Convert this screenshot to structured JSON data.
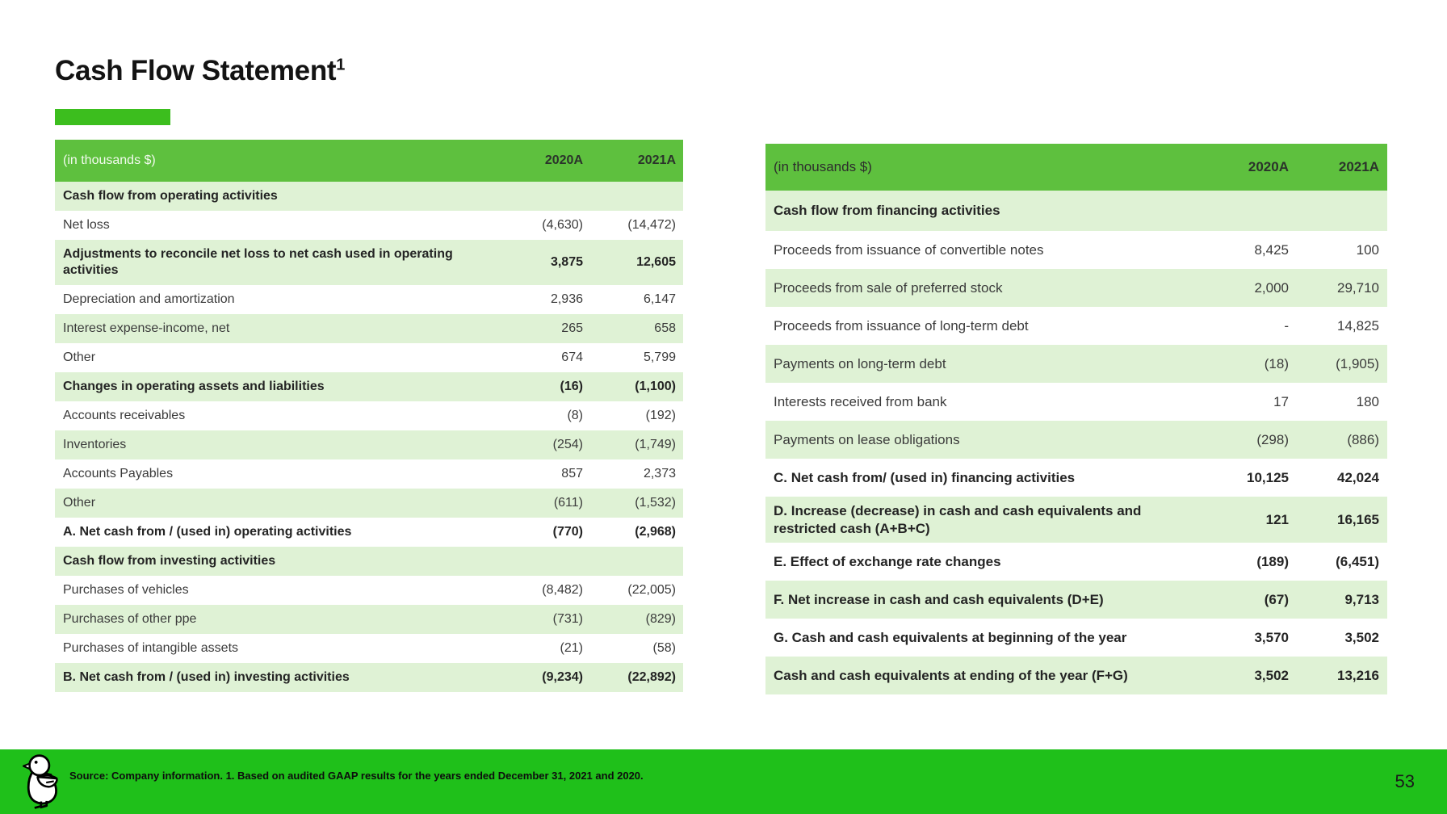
{
  "slide": {
    "title": "Cash Flow Statement",
    "title_superscript": "1",
    "footer_source": "Source: Company information. 1. Based on audited GAAP results for the years ended December 31, 2021 and 2020.",
    "page_number": "53"
  },
  "colors": {
    "header_green": "#5ec03e",
    "row_light_green": "#dff2d5",
    "title_bar_green": "#3cbe1e",
    "footer_green": "#1fc01a"
  },
  "left_table": {
    "unit_label": "(in thousands $)",
    "columns": [
      "2020A",
      "2021A"
    ],
    "rows": [
      {
        "label": "Cash flow from operating activities",
        "v2020": "",
        "v2021": "",
        "bold": true,
        "section": true
      },
      {
        "label": "Net loss",
        "v2020": "(4,630)",
        "v2021": "(14,472)"
      },
      {
        "label": "Adjustments to reconcile net loss to net cash used in operating activities",
        "v2020": "3,875",
        "v2021": "12,605",
        "bold": true,
        "tall": true
      },
      {
        "label": "Depreciation and amortization",
        "v2020": "2,936",
        "v2021": "6,147"
      },
      {
        "label": "Interest expense-income, net",
        "v2020": "265",
        "v2021": "658"
      },
      {
        "label": "Other",
        "v2020": "674",
        "v2021": "5,799"
      },
      {
        "label": "Changes in operating assets and liabilities",
        "v2020": "(16)",
        "v2021": "(1,100)",
        "bold": true
      },
      {
        "label": "Accounts receivables",
        "v2020": "(8)",
        "v2021": "(192)"
      },
      {
        "label": "Inventories",
        "v2020": "(254)",
        "v2021": "(1,749)"
      },
      {
        "label": "Accounts Payables",
        "v2020": "857",
        "v2021": "2,373"
      },
      {
        "label": "Other",
        "v2020": "(611)",
        "v2021": "(1,532)"
      },
      {
        "label": "A. Net cash from / (used in) operating activities",
        "v2020": "(770)",
        "v2021": "(2,968)",
        "bold": true
      },
      {
        "label": "Cash flow from investing activities",
        "v2020": "",
        "v2021": "",
        "bold": true,
        "section": true
      },
      {
        "label": "Purchases of vehicles",
        "v2020": "(8,482)",
        "v2021": "(22,005)"
      },
      {
        "label": "Purchases of other ppe",
        "v2020": "(731)",
        "v2021": "(829)"
      },
      {
        "label": "Purchases of intangible assets",
        "v2020": "(21)",
        "v2021": "(58)"
      },
      {
        "label": "B. Net cash from / (used in) investing activities",
        "v2020": "(9,234)",
        "v2021": "(22,892)",
        "bold": true
      }
    ]
  },
  "right_table": {
    "unit_label": "(in thousands $)",
    "columns": [
      "2020A",
      "2021A"
    ],
    "rows": [
      {
        "label": "Cash flow from financing activities",
        "v2020": "",
        "v2021": "",
        "bold": true,
        "section": true
      },
      {
        "label": "Proceeds from issuance of convertible notes",
        "v2020": "8,425",
        "v2021": "100"
      },
      {
        "label": "Proceeds from sale of preferred stock",
        "v2020": "2,000",
        "v2021": "29,710"
      },
      {
        "label": "Proceeds from issuance of long-term debt",
        "v2020": "-",
        "v2021": "14,825"
      },
      {
        "label": "Payments on long-term debt",
        "v2020": "(18)",
        "v2021": "(1,905)"
      },
      {
        "label": "Interests received from bank",
        "v2020": "17",
        "v2021": "180"
      },
      {
        "label": "Payments on lease obligations",
        "v2020": "(298)",
        "v2021": "(886)"
      },
      {
        "label": "C. Net cash from/ (used in) financing activities",
        "v2020": "10,125",
        "v2021": "42,024",
        "bold": true
      },
      {
        "label": "D. Increase (decrease) in cash and cash equivalents and restricted cash (A+B+C)",
        "v2020": "121",
        "v2021": "16,165",
        "bold": true,
        "tall": true
      },
      {
        "label": "E. Effect of exchange rate changes",
        "v2020": "(189)",
        "v2021": "(6,451)",
        "bold": true
      },
      {
        "label": "F. Net increase in cash and cash equivalents (D+E)",
        "v2020": "(67)",
        "v2021": "9,713",
        "bold": true
      },
      {
        "label": "G. Cash and cash equivalents at beginning of the year",
        "v2020": "3,570",
        "v2021": "3,502",
        "bold": true
      },
      {
        "label": "Cash and cash equivalents at ending of the year (F+G)",
        "v2020": "3,502",
        "v2021": "13,216",
        "bold": true
      }
    ]
  }
}
